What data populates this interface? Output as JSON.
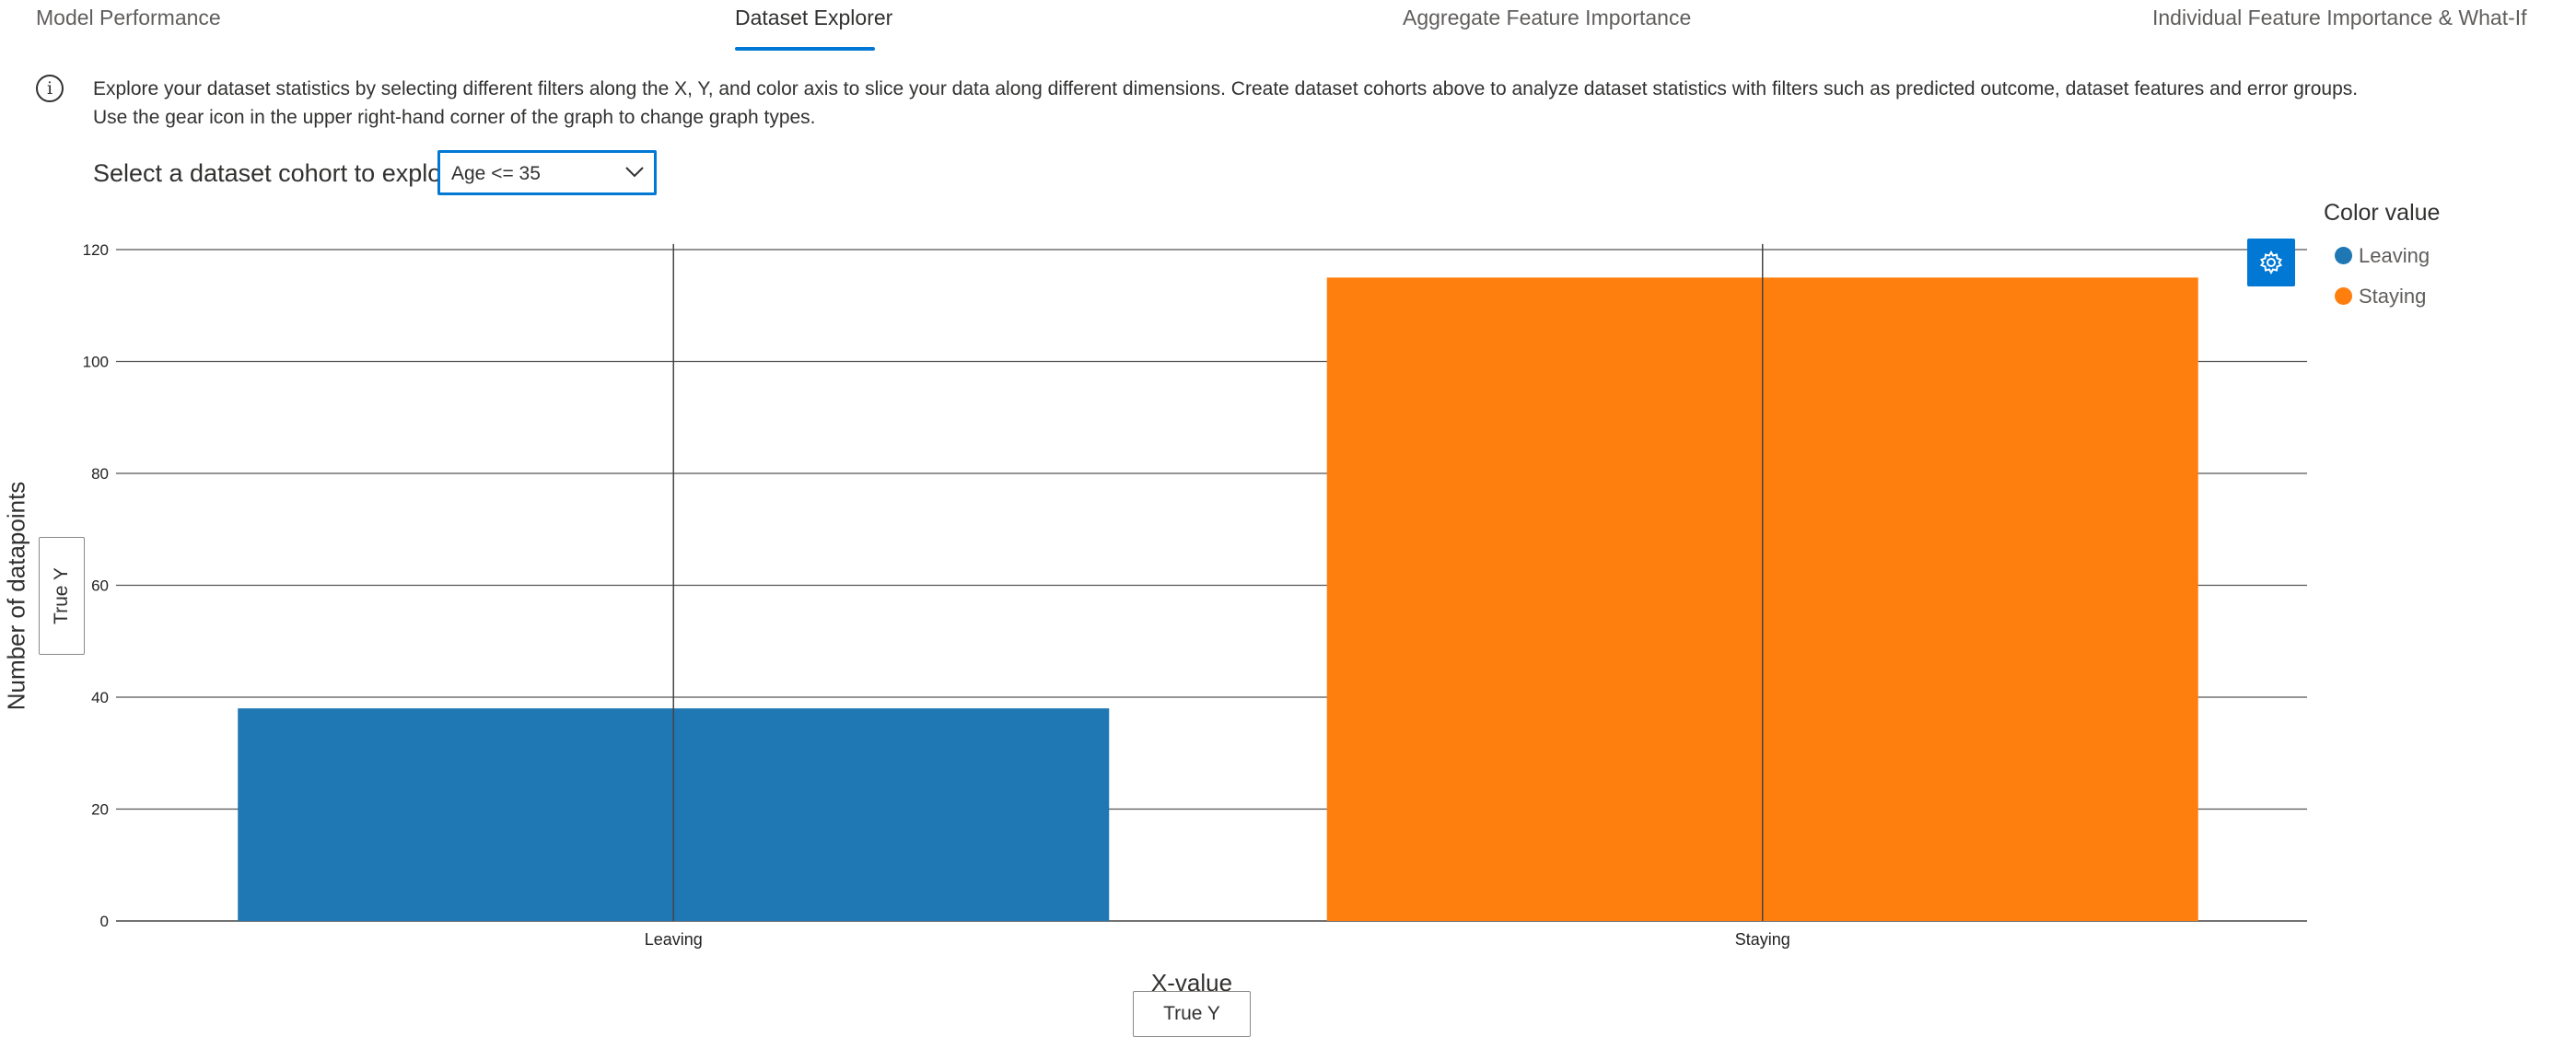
{
  "tabs": [
    {
      "label": "Model Performance",
      "active": false
    },
    {
      "label": "Dataset Explorer",
      "active": true
    },
    {
      "label": "Aggregate Feature Importance",
      "active": false
    },
    {
      "label": "Individual Feature Importance & What-If",
      "active": false
    }
  ],
  "info": {
    "icon": "info-icon",
    "text_line1": "Explore your dataset statistics by selecting different filters along the X, Y, and color axis to slice your data along different dimensions. Create dataset cohorts above to analyze dataset statistics with filters such as predicted outcome, dataset features and error groups.",
    "text_line2": "Use the gear icon in the upper right-hand corner of the graph to change graph types."
  },
  "cohort": {
    "label": "Select a dataset cohort to explore",
    "selected": "Age <= 35"
  },
  "axis_controls": {
    "y_title": "Number of datapoints",
    "y_button": "True Y",
    "x_title": "X-value",
    "x_button": "True Y"
  },
  "legend": {
    "title": "Color value",
    "items": [
      {
        "label": "Leaving",
        "color": "#1f77b4"
      },
      {
        "label": "Staying",
        "color": "#ff7f0e"
      }
    ]
  },
  "gear_button": {
    "icon": "gear-icon"
  },
  "chart_data": {
    "type": "bar",
    "categories": [
      "Leaving",
      "Staying"
    ],
    "values": [
      38,
      115
    ],
    "colors": [
      "#1f77b4",
      "#ff7f0e"
    ],
    "error_bars_upper": [
      121,
      121
    ],
    "ylim": [
      0,
      120
    ],
    "yticks": [
      0,
      20,
      40,
      60,
      80,
      100,
      120
    ],
    "xlabel": "X-value",
    "ylabel": "Number of datapoints",
    "grid": true,
    "legend_position": "right"
  }
}
